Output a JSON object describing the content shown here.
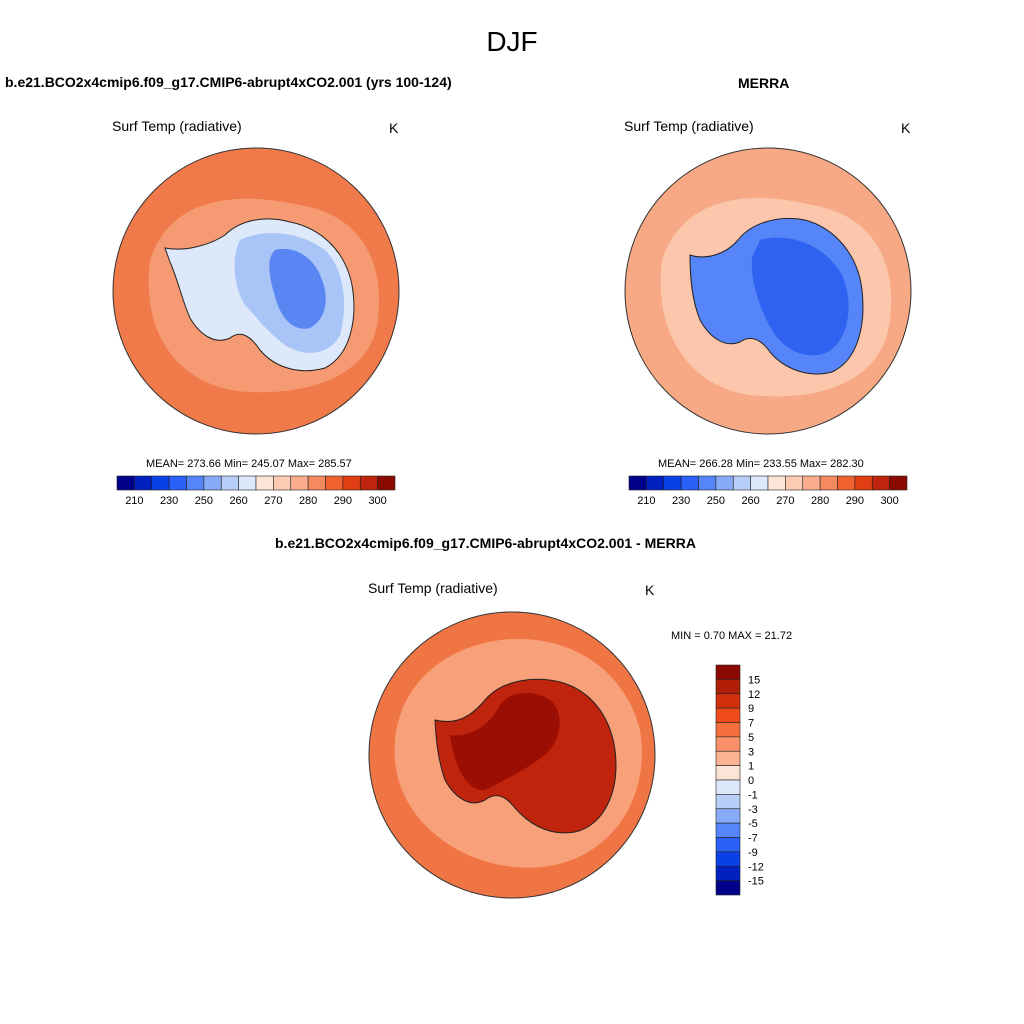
{
  "season": "DJF",
  "panels": {
    "model": {
      "title": "b.e21.BCO2x4cmip6.f09_g17.CMIP6-abrupt4xCO2.001 (yrs 100-124)",
      "field": "Surf Temp (radiative)",
      "units": "K",
      "stats": "MEAN= 273.66  Min= 245.07  Max= 285.57"
    },
    "obs": {
      "title": "MERRA",
      "field": "Surf Temp (radiative)",
      "units": "K",
      "stats": "MEAN= 266.28  Min= 233.55  Max= 282.30"
    },
    "diff": {
      "title": "b.e21.BCO2x4cmip6.f09_g17.CMIP6-abrupt4xCO2.001 - MERRA",
      "field": "Surf Temp (radiative)",
      "units": "K",
      "stats": "MIN =   0.70 MAX =  21.72"
    }
  },
  "colorbar_abs": {
    "ticks": [
      "210",
      "230",
      "250",
      "260",
      "270",
      "280",
      "290",
      "300"
    ],
    "colors": [
      "#00008a",
      "#0020c0",
      "#0a40e8",
      "#2a60f8",
      "#5585f8",
      "#86aaf6",
      "#b6cef8",
      "#dde8fb",
      "#fde4d6",
      "#fccbb3",
      "#f9ad8d",
      "#f58a60",
      "#f0632f",
      "#e03f14",
      "#c0240c",
      "#8a0a02"
    ]
  },
  "colorbar_diff": {
    "ticks": [
      "15",
      "12",
      "9",
      "7",
      "5",
      "3",
      "1",
      "0",
      "-1",
      "-3",
      "-5",
      "-7",
      "-9",
      "-12",
      "-15"
    ],
    "colors": [
      "#8a0a02",
      "#b01e08",
      "#d0300d",
      "#ee4a1a",
      "#f56f3c",
      "#f99069",
      "#fbb293",
      "#fde4d6",
      "#dde8fb",
      "#b6cef8",
      "#86aaf6",
      "#5585f8",
      "#2a60f8",
      "#0a40e8",
      "#0020c0",
      "#00008a"
    ]
  },
  "map_colors": {
    "ocean_model": "#f07a4a",
    "ocean_model_inner": "#f59a72",
    "ocean_obs": "#f7a884",
    "ocean_obs_inner": "#fbc6ab",
    "ocean_diff": "#f07545",
    "ocean_diff_inner": "#f8a079",
    "ant_model_edge": "#dde8fb",
    "ant_model_mid": "#a9c4f6",
    "ant_model_core": "#5a86f4",
    "ant_obs_edge": "#5585f8",
    "ant_obs_core": "#2f62f0",
    "ant_diff_edge": "#c0240c",
    "ant_diff_core": "#9a0e04"
  }
}
